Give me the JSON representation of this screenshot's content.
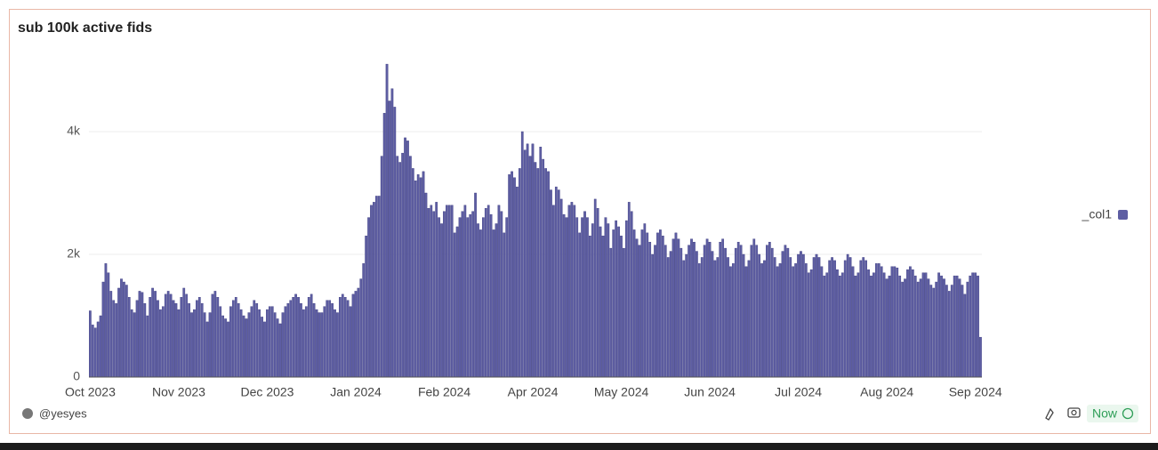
{
  "chart_data": {
    "type": "bar",
    "title": "sub 100k active fids",
    "legend_label": "_col1",
    "author": "@yesyes",
    "status": "Now",
    "color": "#5e5ea3",
    "ylim": [
      0,
      5300
    ],
    "yticks": [
      0,
      {
        "value": 2000,
        "label": "2k"
      },
      {
        "value": 4000,
        "label": "4k"
      }
    ],
    "grid": true,
    "legend": "right",
    "categories": [
      "Oct 2023",
      null,
      null,
      null,
      null,
      null,
      null,
      null,
      null,
      null,
      null,
      null,
      null,
      null,
      null,
      null,
      null,
      null,
      null,
      null,
      null,
      null,
      null,
      null,
      null,
      null,
      null,
      null,
      null,
      null,
      null,
      null,
      null,
      null,
      "Nov 2023",
      null,
      null,
      null,
      null,
      null,
      null,
      null,
      null,
      null,
      null,
      null,
      null,
      null,
      null,
      null,
      null,
      null,
      null,
      null,
      null,
      null,
      null,
      null,
      null,
      null,
      null,
      null,
      null,
      null,
      null,
      null,
      null,
      null,
      "Dec 2023",
      null,
      null,
      null,
      null,
      null,
      null,
      null,
      null,
      null,
      null,
      null,
      null,
      null,
      null,
      null,
      null,
      null,
      null,
      null,
      null,
      null,
      null,
      null,
      null,
      null,
      null,
      null,
      null,
      null,
      null,
      null,
      null,
      null,
      "Jan 2024",
      null,
      null,
      null,
      null,
      null,
      null,
      null,
      null,
      null,
      null,
      null,
      null,
      null,
      null,
      null,
      null,
      null,
      null,
      null,
      null,
      null,
      null,
      null,
      null,
      null,
      null,
      null,
      null,
      null,
      null,
      null,
      null,
      null,
      "Feb 2024",
      null,
      null,
      null,
      null,
      null,
      null,
      null,
      null,
      null,
      null,
      null,
      null,
      null,
      null,
      null,
      null,
      null,
      null,
      null,
      null,
      null,
      null,
      null,
      null,
      null,
      null,
      null,
      null,
      null,
      null,
      null,
      null,
      null,
      "Apr 2024",
      null,
      null,
      null,
      null,
      null,
      null,
      null,
      null,
      null,
      null,
      null,
      null,
      null,
      null,
      null,
      null,
      null,
      null,
      null,
      null,
      null,
      null,
      null,
      null,
      null,
      null,
      null,
      null,
      null,
      null,
      null,
      null,
      null,
      "May 2024",
      null,
      null,
      null,
      null,
      null,
      null,
      null,
      null,
      null,
      null,
      null,
      null,
      null,
      null,
      null,
      null,
      null,
      null,
      null,
      null,
      null,
      null,
      null,
      null,
      null,
      null,
      null,
      null,
      null,
      null,
      null,
      null,
      null,
      "Jun 2024",
      null,
      null,
      null,
      null,
      null,
      null,
      null,
      null,
      null,
      null,
      null,
      null,
      null,
      null,
      null,
      null,
      null,
      null,
      null,
      null,
      null,
      null,
      null,
      null,
      null,
      null,
      null,
      null,
      null,
      null,
      null,
      null,
      null,
      "Jul 2024",
      null,
      null,
      null,
      null,
      null,
      null,
      null,
      null,
      null,
      null,
      null,
      null,
      null,
      null,
      null,
      null,
      null,
      null,
      null,
      null,
      null,
      null,
      null,
      null,
      null,
      null,
      null,
      null,
      null,
      null,
      null,
      null,
      null,
      "Aug 2024",
      null,
      null,
      null,
      null,
      null,
      null,
      null,
      null,
      null,
      null,
      null,
      null,
      null,
      null,
      null,
      null,
      null,
      null,
      null,
      null,
      null,
      null,
      null,
      null,
      null,
      null,
      null,
      null,
      null,
      null,
      null,
      null,
      null,
      "Sep 2024",
      null,
      null
    ],
    "values": [
      1080,
      850,
      800,
      900,
      1000,
      1550,
      1850,
      1700,
      1400,
      1250,
      1200,
      1450,
      1600,
      1550,
      1500,
      1300,
      1100,
      1050,
      1250,
      1400,
      1380,
      1200,
      1000,
      1300,
      1450,
      1400,
      1250,
      1100,
      1150,
      1350,
      1400,
      1350,
      1250,
      1200,
      1100,
      1300,
      1450,
      1350,
      1200,
      1050,
      1100,
      1250,
      1300,
      1200,
      1050,
      900,
      1050,
      1350,
      1400,
      1300,
      1150,
      1000,
      950,
      900,
      1150,
      1250,
      1300,
      1200,
      1100,
      1000,
      950,
      1050,
      1150,
      1250,
      1200,
      1100,
      980,
      900,
      1100,
      1150,
      1150,
      1050,
      950,
      870,
      1050,
      1150,
      1200,
      1250,
      1300,
      1350,
      1300,
      1200,
      1100,
      1150,
      1300,
      1350,
      1200,
      1100,
      1050,
      1050,
      1150,
      1250,
      1250,
      1200,
      1100,
      1050,
      1300,
      1350,
      1300,
      1250,
      1150,
      1350,
      1400,
      1450,
      1600,
      1850,
      2300,
      2600,
      2800,
      2850,
      2950,
      2950,
      3600,
      4300,
      5100,
      4500,
      4700,
      4400,
      3600,
      3500,
      3650,
      3900,
      3850,
      3600,
      3400,
      3200,
      3300,
      3250,
      3350,
      3000,
      2750,
      2800,
      2700,
      2850,
      2600,
      2500,
      2700,
      2800,
      2800,
      2800,
      2350,
      2450,
      2600,
      2700,
      2800,
      2600,
      2650,
      2700,
      3000,
      2500,
      2400,
      2600,
      2750,
      2800,
      2650,
      2400,
      2500,
      2800,
      2700,
      2350,
      2600,
      3300,
      3350,
      3250,
      3100,
      3400,
      4000,
      3700,
      3800,
      3600,
      3800,
      3500,
      3400,
      3750,
      3550,
      3400,
      3350,
      3050,
      2800,
      3100,
      3050,
      2900,
      2650,
      2600,
      2800,
      2850,
      2800,
      2600,
      2350,
      2600,
      2700,
      2600,
      2300,
      2500,
      2900,
      2750,
      2450,
      2300,
      2600,
      2500,
      2100,
      2400,
      2550,
      2450,
      2300,
      2100,
      2550,
      2850,
      2700,
      2400,
      2250,
      2150,
      2400,
      2500,
      2350,
      2200,
      2000,
      2150,
      2350,
      2400,
      2300,
      2150,
      1950,
      2050,
      2250,
      2350,
      2250,
      2100,
      1900,
      2000,
      2150,
      2250,
      2200,
      2050,
      1850,
      1950,
      2150,
      2250,
      2200,
      2050,
      1900,
      1950,
      2200,
      2250,
      2100,
      1950,
      1800,
      1850,
      2100,
      2200,
      2150,
      2000,
      1800,
      1900,
      2150,
      2250,
      2150,
      2000,
      1850,
      1900,
      2150,
      2200,
      2100,
      1950,
      1800,
      1850,
      2050,
      2150,
      2100,
      1950,
      1800,
      1850,
      2000,
      2050,
      2000,
      1850,
      1700,
      1750,
      1950,
      2000,
      1950,
      1800,
      1650,
      1700,
      1900,
      1950,
      1900,
      1750,
      1650,
      1700,
      1900,
      2000,
      1950,
      1800,
      1650,
      1700,
      1900,
      1950,
      1900,
      1750,
      1650,
      1700,
      1850,
      1850,
      1800,
      1700,
      1600,
      1650,
      1800,
      1800,
      1780,
      1650,
      1550,
      1600,
      1750,
      1800,
      1750,
      1650,
      1550,
      1600,
      1700,
      1700,
      1600,
      1500,
      1450,
      1550,
      1700,
      1650,
      1600,
      1500,
      1400,
      1500,
      1650,
      1650,
      1600,
      1500,
      1350,
      1550,
      1650,
      1700,
      1700,
      1650,
      650
    ]
  }
}
